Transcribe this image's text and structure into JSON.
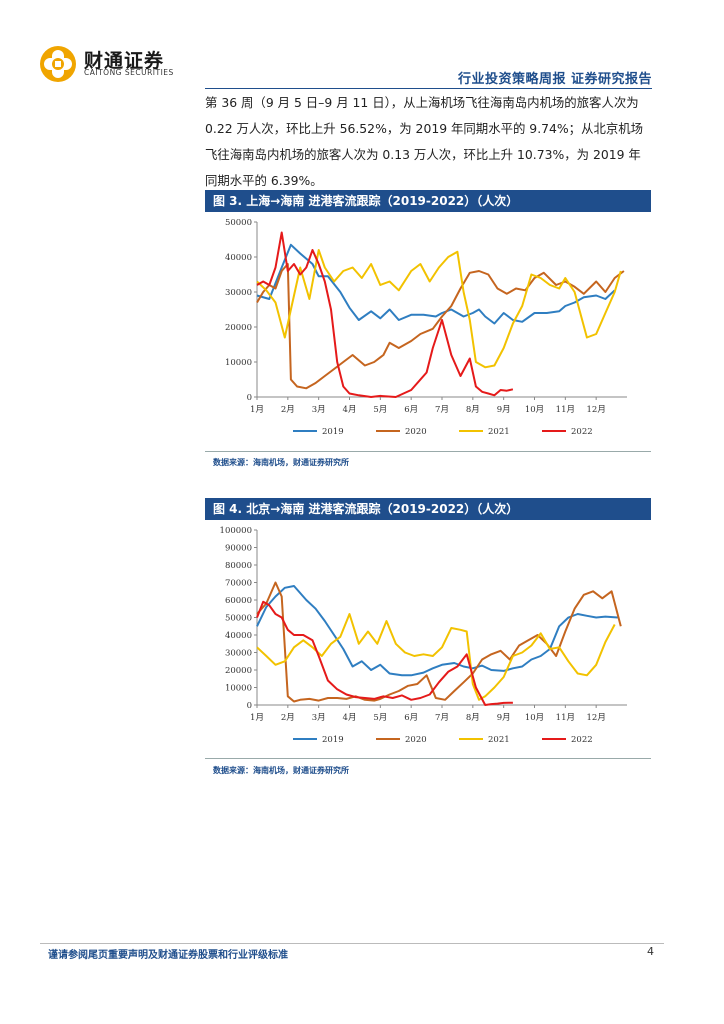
{
  "header": {
    "brand_cn": "财通证券",
    "brand_en": "CAITONG SECURITIES",
    "report_type": "行业投资策略周报   证券研究报告"
  },
  "body": {
    "paragraph": "第 36 周（9 月 5 日–9 月 11 日），从上海机场飞往海南岛内机场的旅客人次为 0.22 万人次，环比上升 56.52%，为 2019 年同期水平的 9.74%；从北京机场飞往海南岛内机场的旅客人次为 0.13 万人次，环比上升 10.73%，为 2019 年同期水平的 6.39%。"
  },
  "figures": [
    {
      "title": "图 3. 上海→海南 进港客流跟踪（2019-2022）（人次）",
      "source": "数据来源：海南机场，财通证券研究所"
    },
    {
      "title": "图 4. 北京→海南 进港客流跟踪（2019-2022）（人次）",
      "source": "数据来源：海南机场，财通证券研究所"
    }
  ],
  "footer": {
    "disclaimer": "谨请参阅尾页重要声明及财通证券股票和行业评级标准",
    "page": "4"
  },
  "chart_data": [
    {
      "type": "line",
      "title": "图 3. 上海→海南 进港客流跟踪（2019-2022）（人次）",
      "x_labels": [
        "1月",
        "2月",
        "3月",
        "4月",
        "5月",
        "6月",
        "7月",
        "8月",
        "9月",
        "10月",
        "11月",
        "12月"
      ],
      "x_range": [
        1,
        13
      ],
      "ylim": [
        0,
        50000
      ],
      "y_ticks": [
        0,
        10000,
        20000,
        30000,
        40000,
        50000
      ],
      "series": [
        {
          "name": "2019",
          "color": "#2f7ec1",
          "x": [
            1.0,
            1.4,
            1.8,
            2.1,
            2.4,
            2.8,
            3.0,
            3.3,
            3.7,
            4.0,
            4.3,
            4.7,
            5.0,
            5.3,
            5.6,
            6.0,
            6.4,
            6.8,
            7.0,
            7.3,
            7.7,
            8.0,
            8.2,
            8.4,
            8.7,
            9.0,
            9.3,
            9.6,
            10.0,
            10.4,
            10.8,
            11.0,
            11.3,
            11.6,
            12.0,
            12.3,
            12.6
          ],
          "values": [
            29000,
            28000,
            37000,
            43500,
            41000,
            38000,
            34500,
            34500,
            30000,
            25500,
            22000,
            24500,
            22500,
            25000,
            22000,
            23500,
            23500,
            23000,
            24000,
            25000,
            23000,
            24000,
            25000,
            23000,
            21000,
            24000,
            22000,
            21500,
            24000,
            24000,
            24500,
            26000,
            27000,
            28500,
            29000,
            28000,
            30500
          ]
        },
        {
          "name": "2020",
          "color": "#c5651f",
          "x": [
            1.0,
            1.2,
            1.4,
            1.6,
            1.8,
            2.0,
            2.1,
            2.3,
            2.6,
            2.9,
            3.2,
            3.5,
            3.8,
            4.1,
            4.5,
            4.8,
            5.1,
            5.3,
            5.6,
            6.0,
            6.3,
            6.7,
            7.0,
            7.3,
            7.6,
            7.9,
            8.2,
            8.5,
            8.8,
            9.1,
            9.4,
            9.7,
            10.0,
            10.3,
            10.7,
            11.0,
            11.3,
            11.6,
            12.0,
            12.3,
            12.6,
            12.9
          ],
          "values": [
            27000,
            30000,
            32000,
            31000,
            36000,
            38000,
            5000,
            3000,
            2500,
            4000,
            6000,
            8000,
            10000,
            12000,
            9000,
            10000,
            12000,
            15500,
            14000,
            16000,
            18000,
            19500,
            23000,
            26000,
            31000,
            35500,
            36000,
            35000,
            31000,
            29500,
            31000,
            30500,
            34000,
            35500,
            32000,
            33000,
            31500,
            29500,
            33000,
            30000,
            34000,
            36000
          ]
        },
        {
          "name": "2021",
          "color": "#f2c200",
          "x": [
            1.0,
            1.3,
            1.6,
            1.9,
            2.1,
            2.4,
            2.7,
            3.0,
            3.2,
            3.5,
            3.8,
            4.1,
            4.4,
            4.7,
            5.0,
            5.3,
            5.6,
            6.0,
            6.3,
            6.6,
            6.9,
            7.2,
            7.5,
            7.7,
            7.9,
            8.1,
            8.4,
            8.7,
            9.0,
            9.3,
            9.6,
            9.9,
            10.2,
            10.5,
            10.8,
            11.0,
            11.3,
            11.7,
            12.0,
            12.3,
            12.6,
            12.8
          ],
          "values": [
            33000,
            30500,
            27000,
            17000,
            25000,
            37000,
            28000,
            42000,
            37000,
            33000,
            36000,
            37000,
            34000,
            38000,
            32000,
            33000,
            30500,
            36000,
            38000,
            33000,
            37000,
            40000,
            41500,
            30000,
            22000,
            10000,
            8500,
            9000,
            14000,
            21000,
            26000,
            35000,
            34000,
            32000,
            31000,
            34000,
            30000,
            17000,
            18000,
            24000,
            30000,
            36000
          ]
        },
        {
          "name": "2022",
          "color": "#e51a1a",
          "x": [
            1.0,
            1.2,
            1.4,
            1.6,
            1.8,
            2.0,
            2.2,
            2.4,
            2.6,
            2.8,
            3.0,
            3.2,
            3.4,
            3.6,
            3.8,
            4.0,
            4.3,
            4.7,
            5.0,
            5.5,
            6.0,
            6.5,
            6.7,
            7.0,
            7.3,
            7.6,
            7.9,
            8.1,
            8.3,
            8.5,
            8.7,
            8.9,
            9.1,
            9.3
          ],
          "values": [
            32000,
            33000,
            32000,
            37000,
            47000,
            36000,
            38000,
            35000,
            37000,
            42000,
            38000,
            33000,
            25000,
            10000,
            3000,
            1000,
            500,
            0,
            300,
            0,
            2000,
            7000,
            14000,
            22000,
            12000,
            6000,
            11000,
            3000,
            1500,
            1000,
            500,
            2000,
            1800,
            2200
          ]
        }
      ]
    },
    {
      "type": "line",
      "title": "图 4. 北京→海南 进港客流跟踪（2019-2022）（人次）",
      "x_labels": [
        "1月",
        "2月",
        "3月",
        "4月",
        "5月",
        "6月",
        "7月",
        "8月",
        "9月",
        "10月",
        "11月",
        "12月"
      ],
      "x_range": [
        1,
        13
      ],
      "ylim": [
        0,
        100000
      ],
      "y_ticks": [
        0,
        10000,
        20000,
        30000,
        40000,
        50000,
        60000,
        70000,
        80000,
        90000,
        100000
      ],
      "series": [
        {
          "name": "2019",
          "color": "#2f7ec1",
          "x": [
            1.0,
            1.3,
            1.6,
            1.9,
            2.2,
            2.6,
            2.9,
            3.2,
            3.5,
            3.8,
            4.1,
            4.4,
            4.7,
            5.0,
            5.3,
            5.7,
            6.0,
            6.4,
            6.7,
            7.0,
            7.4,
            7.7,
            8.0,
            8.3,
            8.6,
            9.0,
            9.3,
            9.6,
            9.9,
            10.2,
            10.5,
            10.8,
            11.1,
            11.4,
            11.7,
            12.0,
            12.3,
            12.7
          ],
          "values": [
            45000,
            56000,
            62000,
            67000,
            68000,
            60000,
            55000,
            48000,
            40000,
            32000,
            22000,
            25000,
            20000,
            23000,
            18000,
            17000,
            17000,
            18500,
            21000,
            23000,
            24000,
            22000,
            21000,
            22500,
            20000,
            19500,
            21000,
            22000,
            26000,
            28000,
            32000,
            45000,
            50000,
            52000,
            51000,
            50000,
            50500,
            50000
          ]
        },
        {
          "name": "2020",
          "color": "#c5651f",
          "x": [
            1.0,
            1.3,
            1.6,
            1.8,
            2.0,
            2.2,
            2.4,
            2.7,
            3.0,
            3.3,
            3.6,
            3.9,
            4.2,
            4.5,
            4.8,
            5.0,
            5.3,
            5.6,
            5.9,
            6.2,
            6.5,
            6.8,
            7.1,
            7.4,
            7.7,
            8.0,
            8.3,
            8.6,
            8.9,
            9.2,
            9.5,
            9.8,
            10.1,
            10.4,
            10.7,
            11.0,
            11.3,
            11.6,
            11.9,
            12.2,
            12.5,
            12.8
          ],
          "values": [
            52000,
            58000,
            70000,
            62000,
            5000,
            2000,
            3000,
            3500,
            2500,
            4000,
            4000,
            3500,
            5000,
            3000,
            2500,
            3500,
            6000,
            8000,
            11000,
            12000,
            17000,
            4000,
            3000,
            8000,
            13000,
            18000,
            26000,
            29000,
            31000,
            26000,
            34000,
            37000,
            40000,
            35000,
            28000,
            42000,
            55000,
            63000,
            65000,
            61000,
            65000,
            45000
          ]
        },
        {
          "name": "2021",
          "color": "#f2c200",
          "x": [
            1.0,
            1.3,
            1.6,
            1.9,
            2.2,
            2.5,
            2.8,
            3.1,
            3.4,
            3.7,
            4.0,
            4.3,
            4.6,
            4.9,
            5.2,
            5.5,
            5.8,
            6.1,
            6.4,
            6.7,
            7.0,
            7.3,
            7.6,
            7.8,
            8.0,
            8.2,
            8.4,
            8.7,
            9.0,
            9.3,
            9.6,
            9.9,
            10.2,
            10.5,
            10.8,
            11.1,
            11.4,
            11.7,
            12.0,
            12.3,
            12.6
          ],
          "values": [
            33000,
            28000,
            23000,
            25000,
            33000,
            37000,
            33000,
            28000,
            35000,
            39000,
            52000,
            35000,
            42000,
            35000,
            48000,
            35000,
            30000,
            28000,
            29000,
            28000,
            33000,
            44000,
            43000,
            42000,
            12000,
            3000,
            5000,
            10000,
            16000,
            28000,
            30000,
            34000,
            41000,
            32000,
            33000,
            25000,
            18000,
            17000,
            23000,
            36000,
            46000
          ]
        },
        {
          "name": "2022",
          "color": "#e51a1a",
          "x": [
            1.0,
            1.2,
            1.4,
            1.6,
            1.8,
            2.0,
            2.2,
            2.5,
            2.8,
            3.0,
            3.3,
            3.6,
            3.9,
            4.2,
            4.5,
            4.8,
            5.1,
            5.4,
            5.7,
            6.0,
            6.3,
            6.6,
            6.9,
            7.2,
            7.5,
            7.8,
            8.1,
            8.4,
            8.6,
            8.8,
            9.0,
            9.3
          ],
          "values": [
            50000,
            59000,
            57000,
            52000,
            50000,
            43000,
            40000,
            40000,
            37000,
            28000,
            14000,
            9000,
            6000,
            4500,
            4000,
            3500,
            5000,
            4000,
            5500,
            3000,
            4000,
            6000,
            13000,
            19000,
            22000,
            29000,
            10000,
            0,
            500,
            800,
            1200,
            1300
          ]
        }
      ]
    }
  ]
}
